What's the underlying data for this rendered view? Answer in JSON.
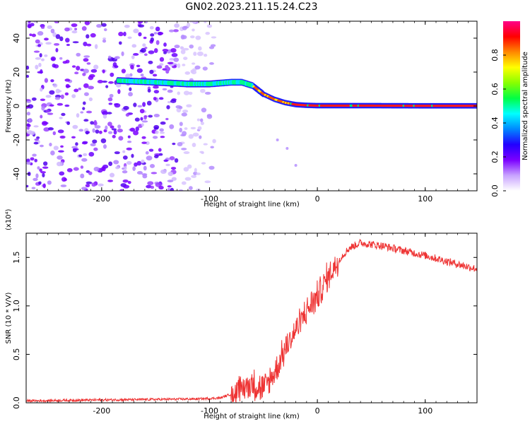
{
  "title": "GN02.2023.211.15.24.C23",
  "chart_data": [
    {
      "type": "heatmap",
      "title": "GN02.2023.211.15.24.C23",
      "xlabel": "Height of straight line (km)",
      "ylabel": "Frequency (Hz)",
      "xlim": [
        -270,
        148
      ],
      "ylim": [
        -50,
        50
      ],
      "x_ticks": [
        "-200",
        "-100",
        "0",
        "100"
      ],
      "y_ticks": [
        "-40",
        "-20",
        "0",
        "20",
        "40"
      ],
      "ridge": {
        "x": [
          -185,
          -150,
          -120,
          -100,
          -80,
          -70,
          -60,
          -50,
          -40,
          -30,
          -20,
          -10,
          0,
          50,
          100,
          148
        ],
        "y": [
          15,
          14,
          13,
          13,
          14,
          14,
          12,
          7,
          4,
          2,
          0.8,
          0.4,
          0.2,
          0.2,
          0.1,
          0.1
        ]
      },
      "colorbar": {
        "label": "Normalized spectral amplitude",
        "range": [
          0.0,
          1.0
        ],
        "ticks": [
          "0.0",
          "0.2",
          "0.4",
          "0.6",
          "0.8"
        ],
        "colors": [
          "#ffffff",
          "#c8a2ff",
          "#7b00ff",
          "#2200ff",
          "#0088ff",
          "#00ffff",
          "#00ff44",
          "#88ff00",
          "#ffff00",
          "#ff8800",
          "#ff0000",
          "#ff0088"
        ]
      },
      "grid": false
    },
    {
      "type": "line",
      "xlabel": "Height of straight line (km)",
      "ylabel": "SNR (10 * V/V)",
      "multiplier": "(x10⁴)",
      "xlim": [
        -270,
        148
      ],
      "ylim": [
        0,
        1.75
      ],
      "x_ticks": [
        "-200",
        "-100",
        "0",
        "100"
      ],
      "y_ticks": [
        "0.0",
        "0.5",
        "1.0",
        "1.5"
      ],
      "series": [
        {
          "color": "#ee3333",
          "x": [
            -270,
            -200,
            -150,
            -110,
            -90,
            -80,
            -70,
            -60,
            -50,
            -40,
            -30,
            -20,
            -10,
            0,
            10,
            20,
            30,
            40,
            60,
            80,
            100,
            120,
            148
          ],
          "y": [
            0.02,
            0.03,
            0.035,
            0.04,
            0.05,
            0.09,
            0.15,
            0.2,
            0.14,
            0.3,
            0.55,
            0.75,
            0.95,
            1.1,
            1.3,
            1.48,
            1.6,
            1.65,
            1.62,
            1.57,
            1.52,
            1.46,
            1.38
          ]
        }
      ],
      "grid": false
    }
  ]
}
